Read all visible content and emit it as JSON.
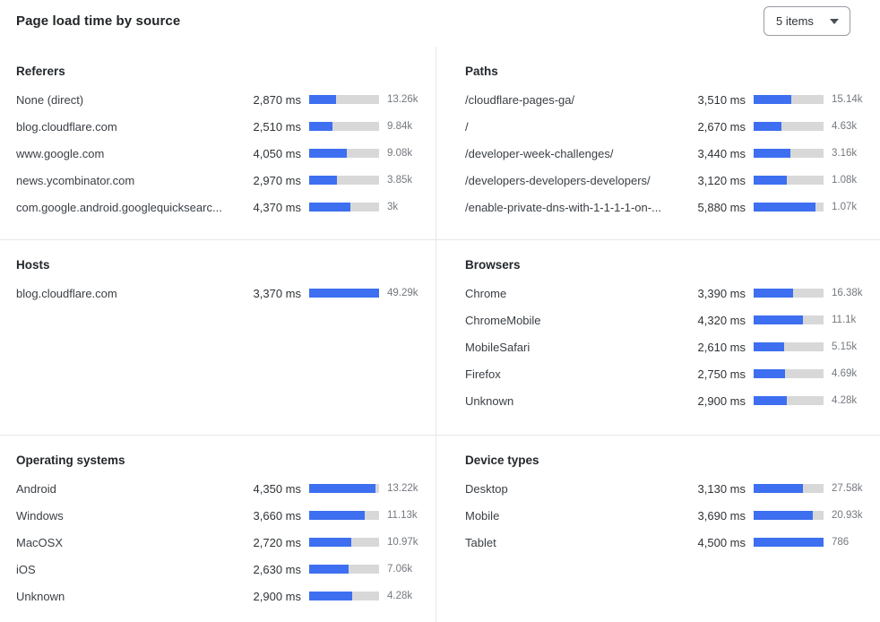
{
  "header": {
    "title": "Page load time by source",
    "items_dropdown": {
      "value": "5 items"
    }
  },
  "colors": {
    "bar_fill": "#3D6FF0",
    "bar_track": "#D8D8D8",
    "divider": "#E6E7E8"
  },
  "sections": [
    {
      "title": "Referers",
      "rows": [
        {
          "label": "None (direct)",
          "time": "2,870 ms",
          "count": "13.26k",
          "bar_percent": 39
        },
        {
          "label": "blog.cloudflare.com",
          "time": "2,510 ms",
          "count": "9.84k",
          "bar_percent": 33
        },
        {
          "label": "www.google.com",
          "time": "4,050 ms",
          "count": "9.08k",
          "bar_percent": 54
        },
        {
          "label": "news.ycombinator.com",
          "time": "2,970 ms",
          "count": "3.85k",
          "bar_percent": 40
        },
        {
          "label": "com.google.android.googlequicksearc...",
          "time": "4,370 ms",
          "count": "3k",
          "bar_percent": 59
        }
      ]
    },
    {
      "title": "Paths",
      "rows": [
        {
          "label": "/cloudflare-pages-ga/",
          "time": "3,510 ms",
          "count": "15.14k",
          "bar_percent": 54
        },
        {
          "label": "/",
          "time": "2,670 ms",
          "count": "4.63k",
          "bar_percent": 40
        },
        {
          "label": "/developer-week-challenges/",
          "time": "3,440 ms",
          "count": "3.16k",
          "bar_percent": 53
        },
        {
          "label": "/developers-developers-developers/",
          "time": "3,120 ms",
          "count": "1.08k",
          "bar_percent": 47
        },
        {
          "label": "/enable-private-dns-with-1-1-1-1-on-...",
          "time": "5,880 ms",
          "count": "1.07k",
          "bar_percent": 88
        }
      ]
    },
    {
      "title": "Hosts",
      "rows": [
        {
          "label": "blog.cloudflare.com",
          "time": "3,370 ms",
          "count": "49.29k",
          "bar_percent": 100
        }
      ]
    },
    {
      "title": "Browsers",
      "rows": [
        {
          "label": "Chrome",
          "time": "3,390 ms",
          "count": "16.38k",
          "bar_percent": 57
        },
        {
          "label": "ChromeMobile",
          "time": "4,320 ms",
          "count": "11.1k",
          "bar_percent": 71
        },
        {
          "label": "MobileSafari",
          "time": "2,610 ms",
          "count": "5.15k",
          "bar_percent": 43
        },
        {
          "label": "Firefox",
          "time": "2,750 ms",
          "count": "4.69k",
          "bar_percent": 45
        },
        {
          "label": "Unknown",
          "time": "2,900 ms",
          "count": "4.28k",
          "bar_percent": 48
        }
      ]
    },
    {
      "title": "Operating systems",
      "rows": [
        {
          "label": "Android",
          "time": "4,350 ms",
          "count": "13.22k",
          "bar_percent": 95
        },
        {
          "label": "Windows",
          "time": "3,660 ms",
          "count": "11.13k",
          "bar_percent": 79
        },
        {
          "label": "MacOSX",
          "time": "2,720 ms",
          "count": "10.97k",
          "bar_percent": 60
        },
        {
          "label": "iOS",
          "time": "2,630 ms",
          "count": "7.06k",
          "bar_percent": 56
        },
        {
          "label": "Unknown",
          "time": "2,900 ms",
          "count": "4.28k",
          "bar_percent": 61
        }
      ]
    },
    {
      "title": "Device types",
      "rows": [
        {
          "label": "Desktop",
          "time": "3,130 ms",
          "count": "27.58k",
          "bar_percent": 70
        },
        {
          "label": "Mobile",
          "time": "3,690 ms",
          "count": "20.93k",
          "bar_percent": 84
        },
        {
          "label": "Tablet",
          "time": "4,500 ms",
          "count": "786",
          "bar_percent": 100
        }
      ]
    }
  ],
  "chart_data": [
    {
      "type": "bar",
      "orientation": "horizontal",
      "title": "Referers",
      "categories": [
        "None (direct)",
        "blog.cloudflare.com",
        "www.google.com",
        "news.ycombinator.com",
        "com.google.android.googlequicksearc..."
      ],
      "series": [
        {
          "name": "page_load_time_ms",
          "values": [
            2870,
            2510,
            4050,
            2970,
            4370
          ]
        },
        {
          "name": "count_label",
          "values": [
            "13.26k",
            "9.84k",
            "9.08k",
            "3.85k",
            "3k"
          ]
        }
      ]
    },
    {
      "type": "bar",
      "orientation": "horizontal",
      "title": "Paths",
      "categories": [
        "/cloudflare-pages-ga/",
        "/",
        "/developer-week-challenges/",
        "/developers-developers-developers/",
        "/enable-private-dns-with-1-1-1-1-on-..."
      ],
      "series": [
        {
          "name": "page_load_time_ms",
          "values": [
            3510,
            2670,
            3440,
            3120,
            5880
          ]
        },
        {
          "name": "count_label",
          "values": [
            "15.14k",
            "4.63k",
            "3.16k",
            "1.08k",
            "1.07k"
          ]
        }
      ]
    },
    {
      "type": "bar",
      "orientation": "horizontal",
      "title": "Hosts",
      "categories": [
        "blog.cloudflare.com"
      ],
      "series": [
        {
          "name": "page_load_time_ms",
          "values": [
            3370
          ]
        },
        {
          "name": "count_label",
          "values": [
            "49.29k"
          ]
        }
      ]
    },
    {
      "type": "bar",
      "orientation": "horizontal",
      "title": "Browsers",
      "categories": [
        "Chrome",
        "ChromeMobile",
        "MobileSafari",
        "Firefox",
        "Unknown"
      ],
      "series": [
        {
          "name": "page_load_time_ms",
          "values": [
            3390,
            4320,
            2610,
            2750,
            2900
          ]
        },
        {
          "name": "count_label",
          "values": [
            "16.38k",
            "11.1k",
            "5.15k",
            "4.69k",
            "4.28k"
          ]
        }
      ]
    },
    {
      "type": "bar",
      "orientation": "horizontal",
      "title": "Operating systems",
      "categories": [
        "Android",
        "Windows",
        "MacOSX",
        "iOS",
        "Unknown"
      ],
      "series": [
        {
          "name": "page_load_time_ms",
          "values": [
            4350,
            3660,
            2720,
            2630,
            2900
          ]
        },
        {
          "name": "count_label",
          "values": [
            "13.22k",
            "11.13k",
            "10.97k",
            "7.06k",
            "4.28k"
          ]
        }
      ]
    },
    {
      "type": "bar",
      "orientation": "horizontal",
      "title": "Device types",
      "categories": [
        "Desktop",
        "Mobile",
        "Tablet"
      ],
      "series": [
        {
          "name": "page_load_time_ms",
          "values": [
            3130,
            3690,
            4500
          ]
        },
        {
          "name": "count_label",
          "values": [
            "27.58k",
            "20.93k",
            "786"
          ]
        }
      ]
    }
  ]
}
